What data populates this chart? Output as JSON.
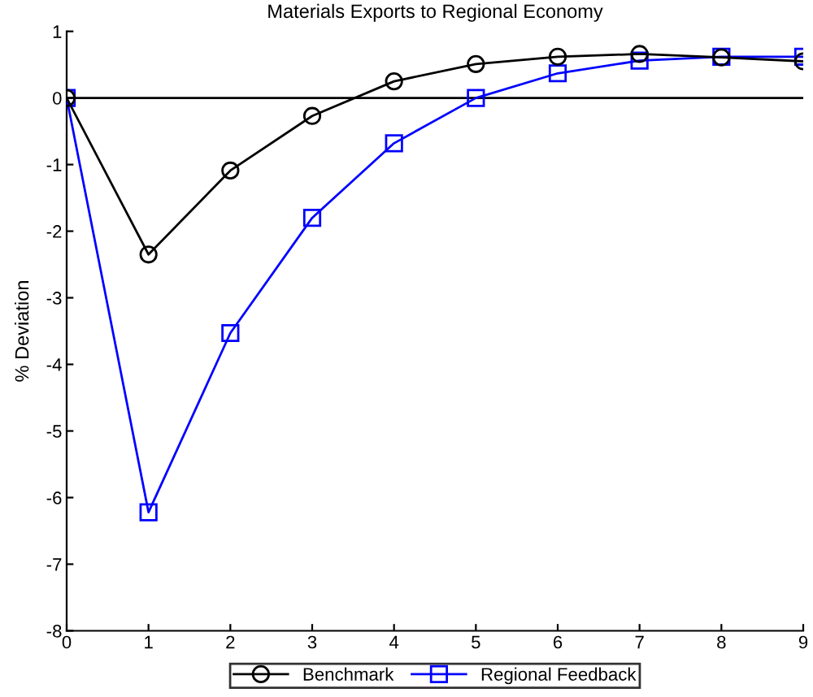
{
  "chart_data": {
    "type": "line",
    "title": "Materials Exports to Regional Economy",
    "ylabel": "% Deviation",
    "x": [
      0,
      1,
      2,
      3,
      4,
      5,
      6,
      7,
      8,
      9
    ],
    "series": [
      {
        "name": "Benchmark",
        "color": "#000000",
        "marker": "circle",
        "values": [
          0,
          -2.35,
          -1.09,
          -0.27,
          0.25,
          0.51,
          0.62,
          0.66,
          0.61,
          0.55
        ]
      },
      {
        "name": "Regional Feedback",
        "color": "#0000ff",
        "marker": "square",
        "values": [
          0,
          -6.22,
          -3.53,
          -1.8,
          -0.68,
          0,
          0.37,
          0.56,
          0.62,
          0.62
        ]
      }
    ],
    "xlim": [
      0,
      9
    ],
    "xticks": [
      0,
      1,
      2,
      3,
      4,
      5,
      6,
      7,
      8,
      9
    ],
    "ylim": [
      -8,
      1
    ],
    "yticks": [
      -8,
      -7,
      -6,
      -5,
      -4,
      -3,
      -2,
      -1,
      0,
      1
    ],
    "ref_lines": [
      {
        "axis": "y",
        "value": 0,
        "color": "#000000"
      }
    ],
    "grid": false,
    "legend": "bottom",
    "line_style": "solid"
  }
}
